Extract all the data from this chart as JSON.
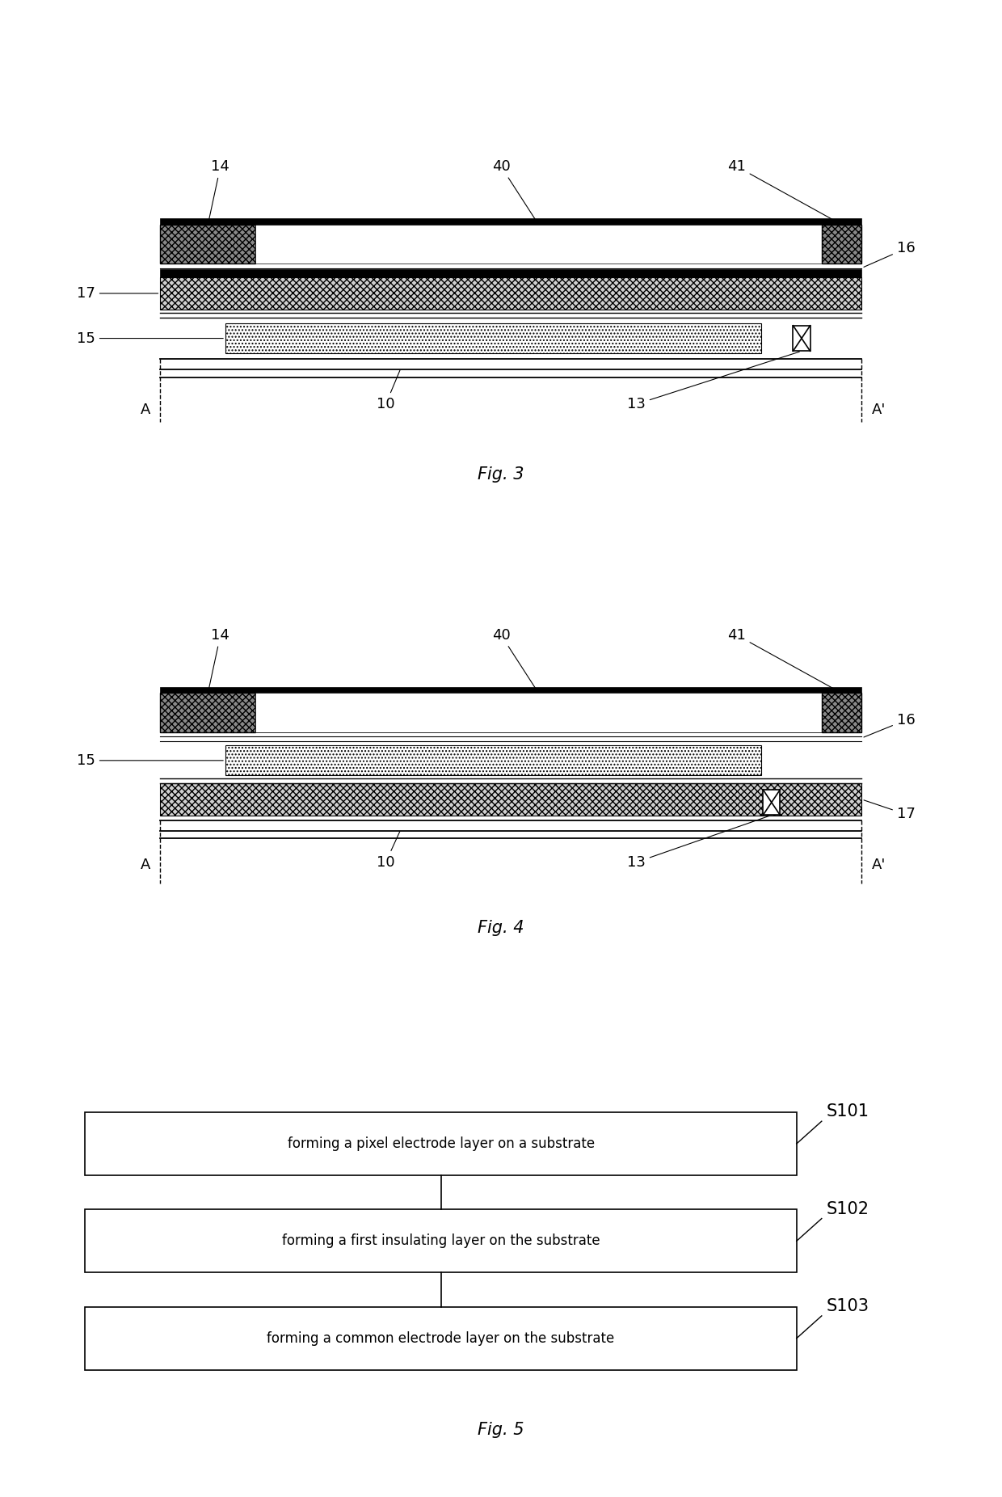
{
  "fig_width": 12.4,
  "fig_height": 18.52,
  "bg_color": "#ffffff",
  "flowchart": {
    "boxes": [
      {
        "text": "forming a pixel electrode layer on a substrate",
        "label": "S101"
      },
      {
        "text": "forming a first insulating layer on the substrate",
        "label": "S102"
      },
      {
        "text": "forming a common electrode layer on the substrate",
        "label": "S103"
      }
    ]
  }
}
